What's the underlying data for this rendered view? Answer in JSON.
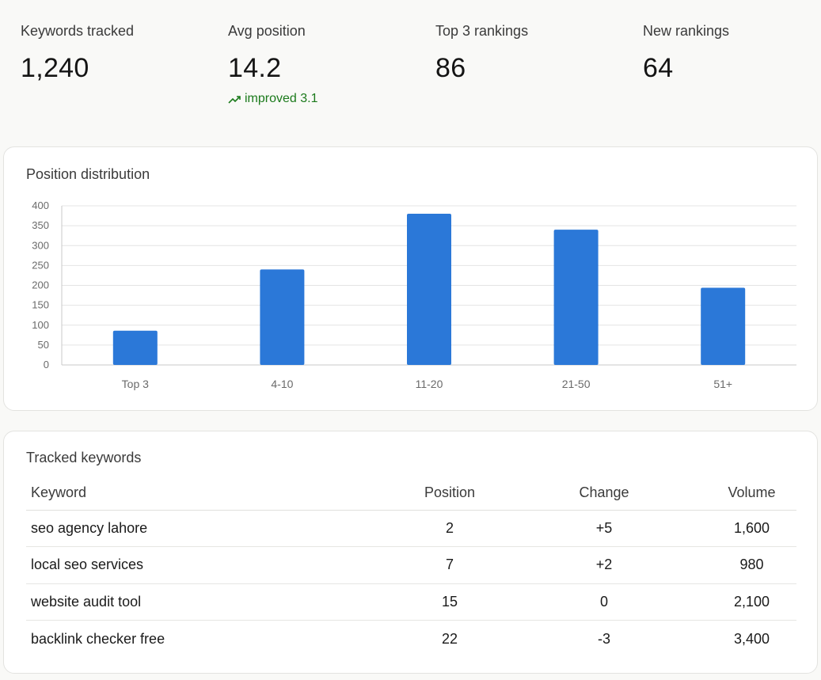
{
  "stats": [
    {
      "label": "Keywords tracked",
      "value": "1,240"
    },
    {
      "label": "Avg position",
      "value": "14.2",
      "delta": "improved 3.1",
      "delta_icon": "trending-up-icon"
    },
    {
      "label": "Top 3 rankings",
      "value": "86"
    },
    {
      "label": "New rankings",
      "value": "64"
    }
  ],
  "chart_card": {
    "title": "Position distribution"
  },
  "chart_data": {
    "type": "bar",
    "categories": [
      "Top 3",
      "4-10",
      "11-20",
      "21-50",
      "51+"
    ],
    "values": [
      86,
      240,
      380,
      340,
      194
    ],
    "ylim": [
      0,
      400
    ],
    "yticks": [
      0,
      50,
      100,
      150,
      200,
      250,
      300,
      350,
      400
    ],
    "grid": true,
    "color": "#2b78d8"
  },
  "table_card": {
    "title": "Tracked keywords",
    "columns": [
      "Keyword",
      "Position",
      "Change",
      "Volume"
    ],
    "rows": [
      {
        "keyword": "seo agency lahore",
        "position": "2",
        "change": "+5",
        "volume": "1,600"
      },
      {
        "keyword": "local seo services",
        "position": "7",
        "change": "+2",
        "volume": "980"
      },
      {
        "keyword": "website audit tool",
        "position": "15",
        "change": "0",
        "volume": "2,100"
      },
      {
        "keyword": "backlink checker free",
        "position": "22",
        "change": "-3",
        "volume": "3,400"
      }
    ]
  },
  "colors": {
    "positive": "#1b7a1b",
    "negative": "#a32020",
    "bar": "#2b78d8"
  }
}
